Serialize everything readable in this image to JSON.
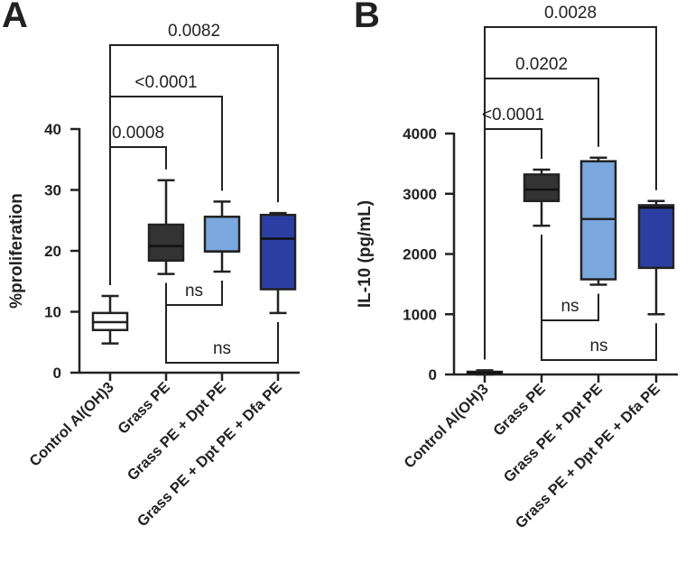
{
  "chart_data": [
    {
      "panel": "A",
      "type": "box",
      "ylabel": "%proliferation",
      "ylim": [
        0,
        40
      ],
      "yticks": [
        0,
        10,
        20,
        30,
        40
      ],
      "categories": [
        "Control Al(OH)3",
        "Grass PE",
        "Grass PE + Dpt PE",
        "Grass PE + Dpt PE + Dfa PE"
      ],
      "boxes": [
        {
          "min": 4.8,
          "q1": 7.0,
          "median": 8.3,
          "q3": 9.8,
          "max": 12.6,
          "color": "#ffffff"
        },
        {
          "min": 16.2,
          "q1": 18.4,
          "median": 20.8,
          "q3": 24.3,
          "max": 31.6,
          "color": "#333333"
        },
        {
          "min": 16.6,
          "q1": 19.9,
          "median": 19.9,
          "q3": 25.6,
          "max": 28.1,
          "color": "#7aa8de"
        },
        {
          "min": 9.8,
          "q1": 13.7,
          "median": 22.0,
          "q3": 25.9,
          "max": 26.2,
          "color": "#2b3fa3"
        }
      ],
      "comparisons": [
        {
          "from": 0,
          "to": 1,
          "label": "0.0008",
          "level": 1
        },
        {
          "from": 0,
          "to": 2,
          "label": "<0.0001",
          "level": 2
        },
        {
          "from": 0,
          "to": 3,
          "label": "0.0082",
          "level": 3
        },
        {
          "from": 1,
          "to": 2,
          "label": "ns",
          "level": -1
        },
        {
          "from": 1,
          "to": 3,
          "label": "ns",
          "level": -2
        }
      ]
    },
    {
      "panel": "B",
      "type": "box",
      "ylabel": "IL-10 (pg/mL)",
      "ylim": [
        0,
        4000
      ],
      "yticks": [
        0,
        1000,
        2000,
        3000,
        4000
      ],
      "categories": [
        "Control Al(OH)3",
        "Grass PE",
        "Grass PE + Dpt PE",
        "Grass PE + Dpt PE + Dfa PE"
      ],
      "boxes": [
        {
          "min": 0,
          "q1": 15,
          "median": 30,
          "q3": 45,
          "max": 70,
          "color": "#777777"
        },
        {
          "min": 2470,
          "q1": 2880,
          "median": 3070,
          "q3": 3320,
          "max": 3400,
          "color": "#333333"
        },
        {
          "min": 1490,
          "q1": 1580,
          "median": 2580,
          "q3": 3540,
          "max": 3600,
          "color": "#7aa8de"
        },
        {
          "min": 1000,
          "q1": 1770,
          "median": 2770,
          "q3": 2810,
          "max": 2880,
          "color": "#2b3fa3"
        }
      ],
      "comparisons": [
        {
          "from": 0,
          "to": 1,
          "label": "<0.0001",
          "level": 1
        },
        {
          "from": 0,
          "to": 2,
          "label": "0.0202",
          "level": 2
        },
        {
          "from": 0,
          "to": 3,
          "label": "0.0028",
          "level": 3
        },
        {
          "from": 1,
          "to": 2,
          "label": "ns",
          "level": -1
        },
        {
          "from": 1,
          "to": 3,
          "label": "ns",
          "level": -2
        }
      ]
    }
  ]
}
